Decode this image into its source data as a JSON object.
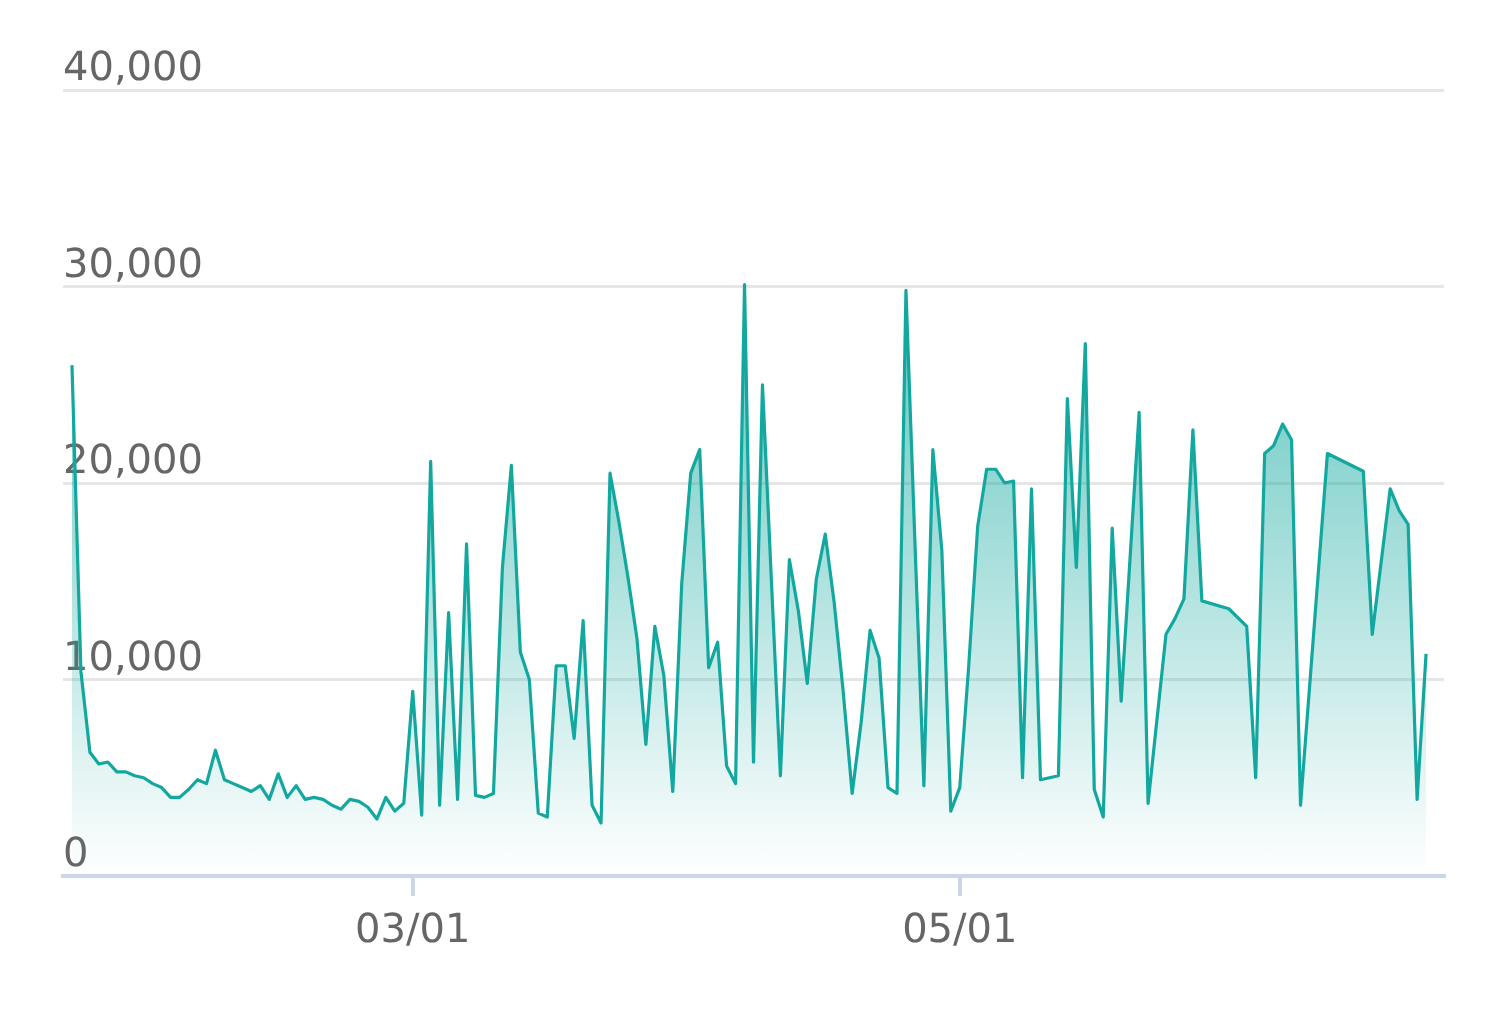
{
  "chart_data": {
    "type": "area",
    "color": "#12a89f",
    "grid": "y",
    "xlim": [
      "--01-22",
      "--06-24"
    ],
    "xticks": [
      {
        "value": "--03-01",
        "label": "03/01"
      },
      {
        "value": "--05-01",
        "label": "05/01"
      }
    ],
    "ylim": [
      0,
      40000
    ],
    "yticks": [
      0,
      {
        "value": 10000,
        "label": "10,000"
      },
      {
        "value": 20000,
        "label": "20,000"
      },
      {
        "value": 30000,
        "label": "30,000"
      },
      {
        "value": 40000,
        "label": "40,000"
      }
    ],
    "x": [
      "--01-23",
      "--01-24",
      "--01-25",
      "--01-26",
      "--01-27",
      "--01-28",
      "--01-29",
      "--01-30",
      "--01-31",
      "--02-01",
      "--02-02",
      "--02-03",
      "--02-04",
      "--02-05",
      "--02-06",
      "--02-07",
      "--02-08",
      "--02-09",
      "--02-10",
      "--02-11",
      "--02-12",
      "--02-13",
      "--02-14",
      "--02-15",
      "--02-16",
      "--02-17",
      "--02-18",
      "--02-19",
      "--02-20",
      "--02-21",
      "--02-22",
      "--02-23",
      "--02-24",
      "--02-25",
      "--02-26",
      "--02-27",
      "--02-28",
      "--02-29",
      "--03-01",
      "--03-02",
      "--03-03",
      "--03-04",
      "--03-05",
      "--03-06",
      "--03-07",
      "--03-08",
      "--03-09",
      "--03-10",
      "--03-11",
      "--03-12",
      "--03-13",
      "--03-14",
      "--03-15",
      "--03-16",
      "--03-17",
      "--03-18",
      "--03-19",
      "--03-20",
      "--03-21",
      "--03-22",
      "--03-23",
      "--03-24",
      "--03-25",
      "--03-26",
      "--03-27",
      "--03-28",
      "--03-29",
      "--03-30",
      "--03-31",
      "--04-01",
      "--04-02",
      "--04-03",
      "--04-04",
      "--04-05",
      "--04-06",
      "--04-07",
      "--04-08",
      "--04-09",
      "--04-10",
      "--04-11",
      "--04-12",
      "--04-13",
      "--04-14",
      "--04-15",
      "--04-16",
      "--04-17",
      "--04-18",
      "--04-19",
      "--04-20",
      "--04-21",
      "--04-22",
      "--04-23",
      "--04-24",
      "--04-25",
      "--04-26",
      "--04-27",
      "--04-28",
      "--04-29",
      "--04-30",
      "--05-01",
      "--05-02",
      "--05-03",
      "--05-04",
      "--05-05",
      "--05-06",
      "--05-07",
      "--05-08",
      "--05-09",
      "--05-10",
      "--05-11",
      "--05-12",
      "--05-13",
      "--05-14",
      "--05-15",
      "--05-16",
      "--05-17",
      "--05-18",
      "--05-19",
      "--05-21",
      "--05-22",
      "--05-24",
      "--05-25",
      "--05-26",
      "--05-27",
      "--05-28",
      "--05-31",
      "--06-02",
      "--06-03",
      "--06-04",
      "--06-05",
      "--06-06",
      "--06-07",
      "--06-08",
      "--06-11",
      "--06-15",
      "--06-16",
      "--06-18",
      "--06-19",
      "--06-20",
      "--06-21",
      "--06-22"
    ],
    "values": [
      26000,
      10400,
      6300,
      5700,
      5800,
      5300,
      5300,
      5100,
      5000,
      4700,
      4500,
      4000,
      4000,
      4400,
      4900,
      4700,
      6400,
      4900,
      4700,
      4500,
      4300,
      4600,
      3900,
      5200,
      4000,
      4600,
      3900,
      4000,
      3900,
      3600,
      3400,
      3900,
      3800,
      3500,
      2900,
      4000,
      3300,
      3700,
      9400,
      3100,
      21100,
      3600,
      13400,
      3900,
      16900,
      4100,
      4000,
      4200,
      15700,
      20900,
      11400,
      10000,
      3200,
      3000,
      10700,
      10700,
      7000,
      13000,
      3600,
      2700,
      20500,
      18000,
      15200,
      12100,
      6700,
      12700,
      10200,
      4300,
      14900,
      20500,
      21700,
      10600,
      11900,
      5600,
      4700,
      30100,
      5800,
      25000,
      15000,
      5100,
      16100,
      13500,
      9800,
      15100,
      17400,
      13900,
      9400,
      4200,
      7800,
      12500,
      11100,
      4500,
      4200,
      29800,
      17000,
      4600,
      21700,
      16600,
      3300,
      4500,
      10700,
      17800,
      20700,
      20700,
      20000,
      20100,
      5000,
      19700,
      4900,
      5000,
      5100,
      24300,
      15700,
      27100,
      4400,
      3000,
      17700,
      8900,
      23600,
      3700,
      12300,
      13100,
      14100,
      22700,
      14000,
      13600,
      12700,
      5000,
      21500,
      21900,
      23000,
      22200,
      3600,
      21500,
      20600,
      12300,
      19700,
      18600,
      17900,
      3900,
      11300
    ]
  }
}
